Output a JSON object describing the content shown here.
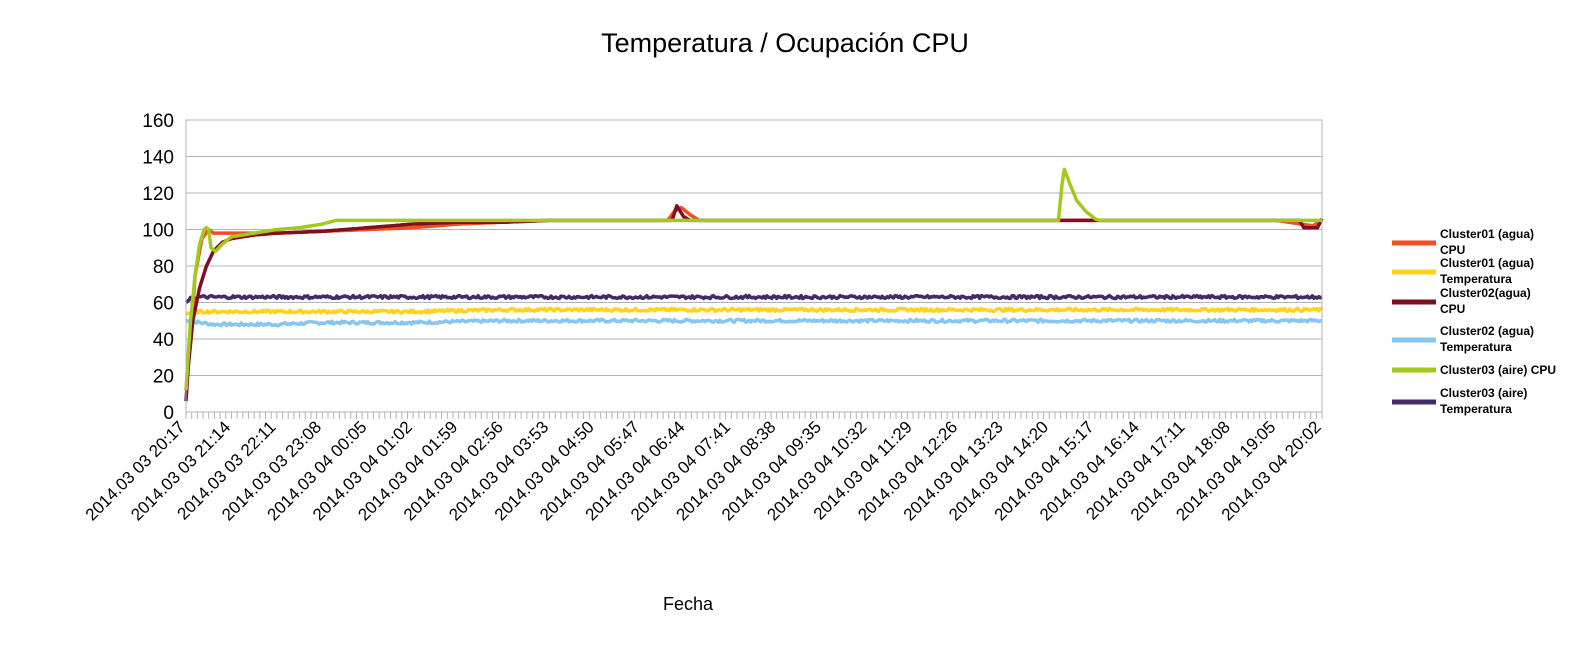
{
  "chart_data": {
    "type": "line",
    "title": "Temperatura / Ocupación CPU",
    "xlabel": "Fecha",
    "ylabel": "",
    "ylim": [
      0,
      160
    ],
    "yticks": [
      0,
      20,
      40,
      60,
      80,
      100,
      120,
      140,
      160
    ],
    "grid": true,
    "legend_position": "right",
    "x_tick_labels": [
      "2014.03 03 20:17",
      "2014.03 03 21:14",
      "2014.03 03 22:11",
      "2014.03 03 23:08",
      "2014.03 04 00:05",
      "2014.03 04 01:02",
      "2014.03 04 01:59",
      "2014.03 04 02:56",
      "2014.03 04 03:53",
      "2014.03 04 04:50",
      "2014.03 04 05:47",
      "2014.03 04 06:44",
      "2014.03 04 07:41",
      "2014.03 04 08:38",
      "2014.03 04 09:35",
      "2014.03 04 10:32",
      "2014.03 04 11:29",
      "2014.03 04 12:26",
      "2014.03 04 13:23",
      "2014.03 04 14:20",
      "2014.03 04 15:17",
      "2014.03 04 16:14",
      "2014.03 04 17:11",
      "2014.03 04 18:08",
      "2014.03 04 19:05",
      "2014.03 04 20:02"
    ],
    "series": [
      {
        "name": "Cluster01 (agua) CPU",
        "legend_lines": [
          "Cluster01 (agua)",
          "CPU"
        ],
        "color": "#f04e23",
        "points": [
          [
            0,
            12
          ],
          [
            0.1,
            40
          ],
          [
            0.2,
            75
          ],
          [
            0.35,
            95
          ],
          [
            0.5,
            100
          ],
          [
            0.6,
            98
          ],
          [
            1,
            98
          ],
          [
            1.5,
            98
          ],
          [
            2,
            98
          ],
          [
            3,
            99
          ],
          [
            4,
            100
          ],
          [
            5,
            101
          ],
          [
            6,
            103
          ],
          [
            7,
            104
          ],
          [
            8,
            105
          ],
          [
            10.6,
            105
          ],
          [
            10.75,
            110
          ],
          [
            10.9,
            112
          ],
          [
            11.1,
            108
          ],
          [
            11.3,
            105
          ],
          [
            14,
            105
          ],
          [
            18,
            105
          ],
          [
            19.9,
            105
          ],
          [
            21,
            105
          ],
          [
            24,
            105
          ],
          [
            24.8,
            102
          ],
          [
            25,
            105
          ]
        ]
      },
      {
        "name": "Cluster01 (agua) Temperatura",
        "legend_lines": [
          "Cluster01 (agua)",
          "Temperatura"
        ],
        "color": "#ffd21f",
        "points": [
          [
            0,
            54
          ],
          [
            0.3,
            55
          ],
          [
            1,
            55
          ],
          [
            3,
            55
          ],
          [
            5,
            55
          ],
          [
            7,
            56
          ],
          [
            9,
            56
          ],
          [
            11,
            56
          ],
          [
            13,
            56
          ],
          [
            15,
            56
          ],
          [
            17,
            56
          ],
          [
            19,
            56
          ],
          [
            21,
            56
          ],
          [
            23,
            56
          ],
          [
            25,
            56
          ]
        ]
      },
      {
        "name": "Cluster02(agua) CPU",
        "legend_lines": [
          "Cluster02(agua)",
          "CPU"
        ],
        "color": "#7f0f20",
        "points": [
          [
            0,
            6
          ],
          [
            0.05,
            25
          ],
          [
            0.15,
            50
          ],
          [
            0.3,
            68
          ],
          [
            0.45,
            80
          ],
          [
            0.6,
            88
          ],
          [
            0.8,
            93
          ],
          [
            1,
            95
          ],
          [
            1.5,
            97
          ],
          [
            2,
            98
          ],
          [
            3,
            99
          ],
          [
            4,
            101
          ],
          [
            5,
            103
          ],
          [
            6,
            104
          ],
          [
            7,
            104
          ],
          [
            8,
            105
          ],
          [
            10.7,
            105
          ],
          [
            10.8,
            113
          ],
          [
            10.95,
            107
          ],
          [
            11.1,
            105
          ],
          [
            19.5,
            105
          ],
          [
            20,
            105
          ],
          [
            24.5,
            105
          ],
          [
            24.6,
            101
          ],
          [
            24.9,
            101
          ],
          [
            25,
            106
          ]
        ]
      },
      {
        "name": "Cluster02 (agua) Temperatura",
        "legend_lines": [
          "Cluster02 (agua)",
          "Temperatura"
        ],
        "color": "#87c6f1",
        "points": [
          [
            0,
            50
          ],
          [
            0.3,
            49
          ],
          [
            0.6,
            48
          ],
          [
            1,
            48
          ],
          [
            2,
            48
          ],
          [
            3,
            49
          ],
          [
            5,
            49
          ],
          [
            7,
            50
          ],
          [
            9,
            50
          ],
          [
            11,
            50
          ],
          [
            13,
            50
          ],
          [
            15,
            50
          ],
          [
            17,
            50
          ],
          [
            19,
            50
          ],
          [
            21,
            50
          ],
          [
            23,
            50
          ],
          [
            25,
            50
          ]
        ]
      },
      {
        "name": "Cluster03 (aire) CPU",
        "legend_lines": [
          "Cluster03 (aire) CPU"
        ],
        "color": "#a4c91d",
        "points": [
          [
            0,
            12
          ],
          [
            0.1,
            50
          ],
          [
            0.2,
            75
          ],
          [
            0.3,
            92
          ],
          [
            0.4,
            100
          ],
          [
            0.45,
            101
          ],
          [
            0.5,
            100
          ],
          [
            0.55,
            90
          ],
          [
            0.65,
            88
          ],
          [
            0.8,
            92
          ],
          [
            1,
            96
          ],
          [
            1.5,
            98
          ],
          [
            2,
            100
          ],
          [
            2.5,
            101
          ],
          [
            3,
            103
          ],
          [
            3.3,
            105
          ],
          [
            5,
            105
          ],
          [
            8,
            105
          ],
          [
            11,
            105
          ],
          [
            14,
            105
          ],
          [
            18,
            105
          ],
          [
            19.2,
            105
          ],
          [
            19.28,
            125
          ],
          [
            19.33,
            133
          ],
          [
            19.45,
            125
          ],
          [
            19.6,
            116
          ],
          [
            19.8,
            110
          ],
          [
            20,
            106
          ],
          [
            20.1,
            105
          ],
          [
            22,
            105
          ],
          [
            25,
            105
          ]
        ]
      },
      {
        "name": "Cluster03 (aire) Temperatura",
        "legend_lines": [
          "Cluster03 (aire)",
          "Temperatura"
        ],
        "color": "#452a6a",
        "points": [
          [
            0,
            60
          ],
          [
            0.1,
            62
          ],
          [
            0.3,
            63
          ],
          [
            1,
            63
          ],
          [
            3,
            63
          ],
          [
            5,
            63
          ],
          [
            7,
            63
          ],
          [
            9,
            63
          ],
          [
            11,
            63
          ],
          [
            13,
            63
          ],
          [
            15,
            63
          ],
          [
            17,
            63
          ],
          [
            19,
            63
          ],
          [
            21,
            63
          ],
          [
            23,
            63
          ],
          [
            25,
            63
          ]
        ]
      }
    ]
  }
}
